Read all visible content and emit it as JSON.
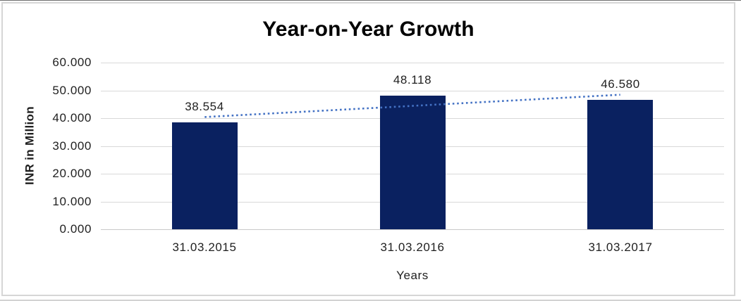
{
  "chart_data": {
    "type": "bar",
    "title": "Year-on-Year Growth",
    "categories": [
      "31.03.2015",
      "31.03.2016",
      "31.03.2017"
    ],
    "values": [
      38.554,
      48.118,
      46.58
    ],
    "data_labels": [
      "38.554",
      "48.118",
      "46.580"
    ],
    "xlabel": "Years",
    "ylabel": "INR in Million",
    "ylim": [
      0,
      60
    ],
    "ytick_step": 10,
    "ytick_labels": [
      "0.000",
      "10.000",
      "20.000",
      "30.000",
      "40.000",
      "50.000",
      "60.000"
    ],
    "grid": true,
    "legend_position": "none",
    "bar_color": "#0a2160",
    "trendline": {
      "type": "linear",
      "style": "dotted",
      "color": "#4472c4"
    },
    "gridline_color": "#d9d9d9",
    "title_color": "#000000",
    "text_color": "#1f1f1f",
    "frame_border_color": "#d6d6d6"
  }
}
